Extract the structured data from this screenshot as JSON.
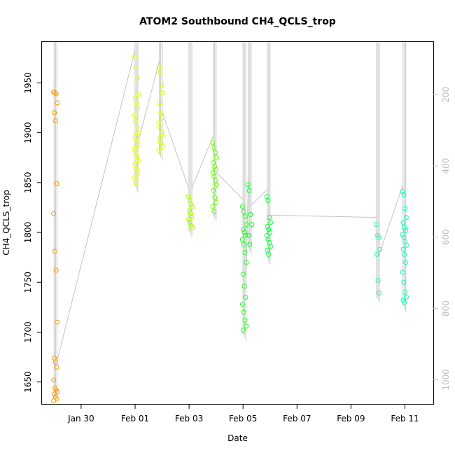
{
  "chart_data": {
    "type": "scatter",
    "title": "ATOM2 Southbound CH4_QCLS_trop",
    "xlabel": "Date",
    "ylabel": "CH4_QCLS_trop",
    "x_tick_labels": [
      "Jan 30",
      "Feb 01",
      "Feb 03",
      "Feb 05",
      "Feb 07",
      "Feb 09",
      "Feb 11"
    ],
    "x_tick_days": [
      30,
      32,
      34,
      36,
      38,
      40,
      42
    ],
    "xlim_days": [
      28.55,
      43.05
    ],
    "ylim": [
      1628,
      1991
    ],
    "y_ticks": [
      1650,
      1700,
      1750,
      1800,
      1850,
      1900,
      1950
    ],
    "y2_ticks": [
      200,
      400,
      600,
      800,
      1000
    ],
    "y2lim": [
      52,
      1068
    ],
    "y2_inverted": true,
    "series": [
      {
        "color": "#ff9900",
        "x": 29.05,
        "values": [
          1941,
          1940,
          1939,
          1930,
          1920,
          1912,
          1849,
          1819,
          1781,
          1762,
          1710,
          1674,
          1670,
          1665,
          1652,
          1644,
          1642,
          1640,
          1638,
          1635,
          1633,
          1631
        ]
      },
      {
        "color": "#e6ff00",
        "x": 32.05,
        "values": [
          1976,
          1965,
          1955,
          1938,
          1935,
          1930,
          1925,
          1918,
          1912,
          1905,
          1900,
          1896,
          1892,
          1888,
          1884,
          1880,
          1876,
          1872,
          1868,
          1864,
          1860,
          1855,
          1850
        ]
      },
      {
        "color": "#d9ff00",
        "x": 32.95,
        "values": [
          1965,
          1960,
          1948,
          1940,
          1930,
          1920,
          1915,
          1910,
          1905,
          1900,
          1897,
          1894,
          1890,
          1886,
          1882
        ]
      },
      {
        "color": "#a8ff00",
        "x": 34.05,
        "values": [
          1836,
          1832,
          1828,
          1825,
          1822,
          1819,
          1816,
          1813,
          1810,
          1807,
          1805
        ]
      },
      {
        "color": "#6aff00",
        "x": 34.95,
        "values": [
          1890,
          1885,
          1880,
          1875,
          1870,
          1866,
          1863,
          1860,
          1856,
          1852,
          1848,
          1842,
          1835,
          1830,
          1826,
          1821
        ]
      },
      {
        "color": "#22ff20",
        "x": 36.05,
        "values": [
          1826,
          1821,
          1816,
          1808,
          1803,
          1800,
          1797,
          1793,
          1788,
          1780,
          1770,
          1758,
          1746,
          1735,
          1728,
          1720,
          1712,
          1706,
          1702
        ]
      },
      {
        "color": "#10ff30",
        "x": 36.25,
        "values": [
          1848,
          1842,
          1818,
          1808,
          1797,
          1788
        ]
      },
      {
        "color": "#10ff40",
        "x": 36.95,
        "values": [
          1836,
          1832,
          1815,
          1810,
          1806,
          1803,
          1800,
          1797,
          1793,
          1790,
          1786,
          1782,
          1778
        ]
      },
      {
        "color": "#20ff90",
        "x": 41.0,
        "values": [
          1808,
          1797,
          1795,
          1783,
          1778,
          1752,
          1739
        ]
      },
      {
        "color": "#10ffbb",
        "x": 41.98,
        "values": [
          1841,
          1838,
          1824,
          1815,
          1810,
          1805,
          1802,
          1798,
          1795,
          1791,
          1787,
          1783,
          1778,
          1770,
          1760,
          1750,
          1740,
          1735,
          1732,
          1730
        ]
      }
    ]
  }
}
